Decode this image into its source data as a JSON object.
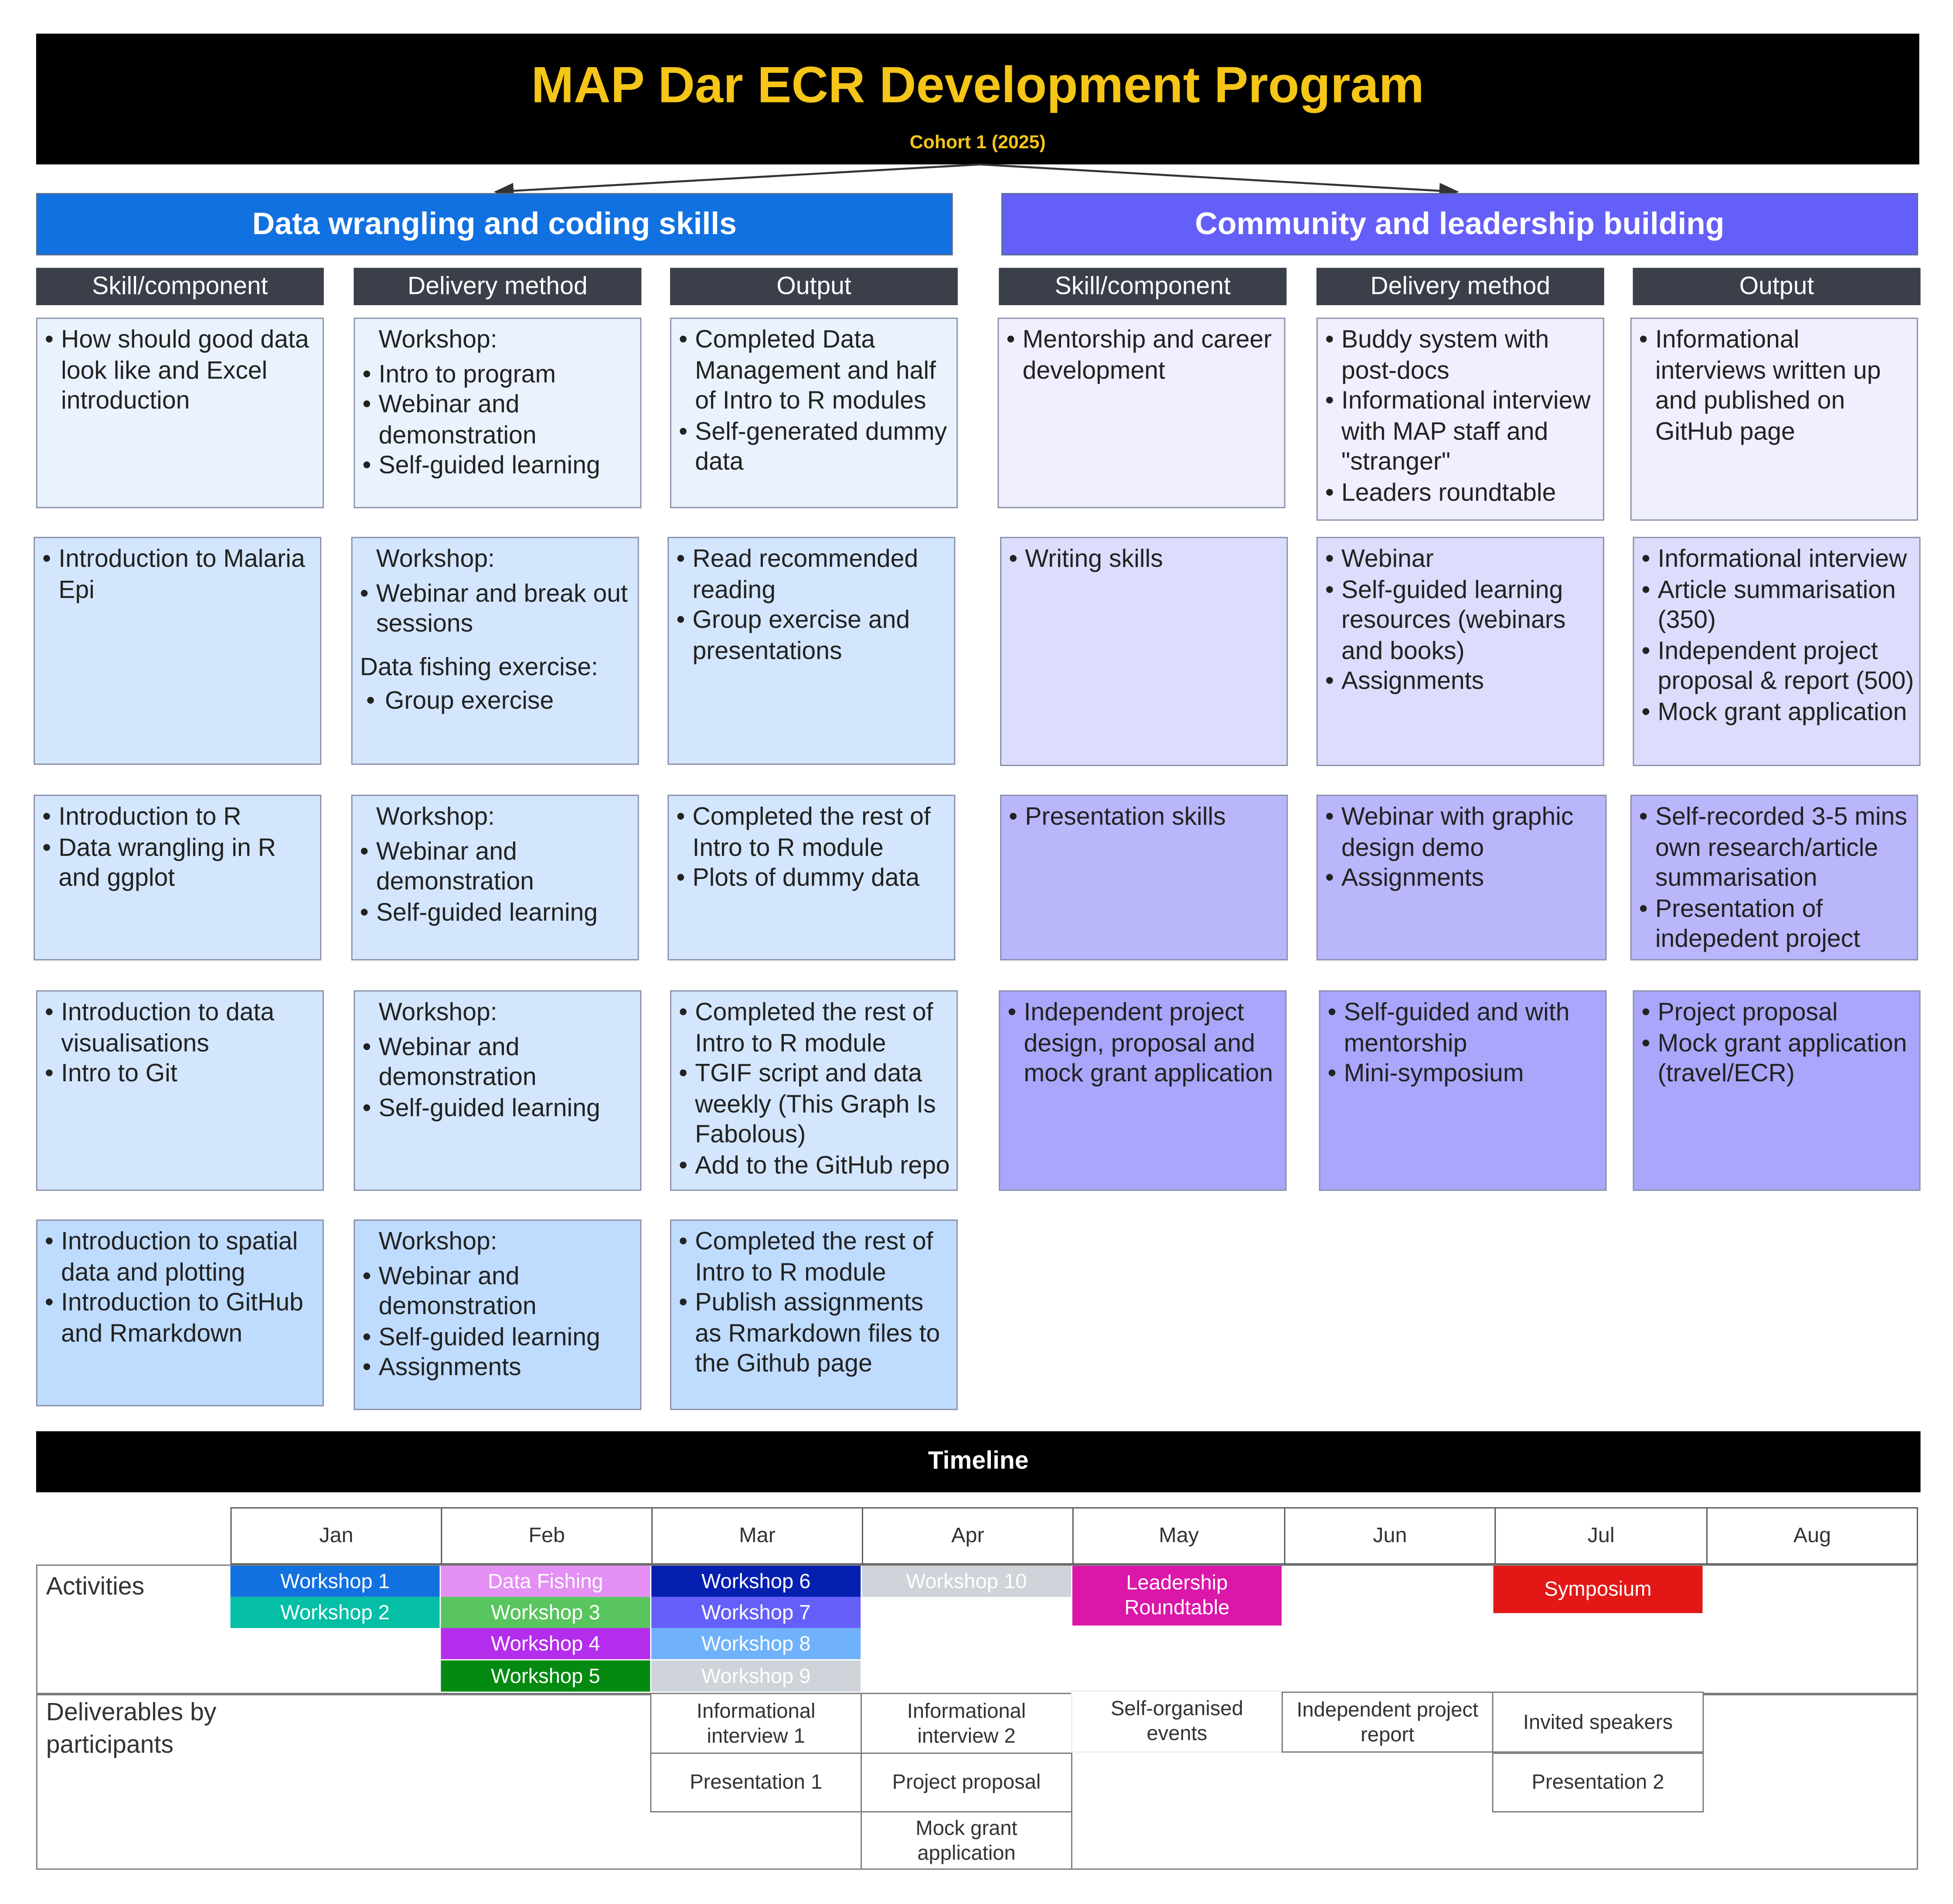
{
  "header": {
    "title": "MAP Dar ECR Development Program",
    "subtitle": "Cohort 1 (2025)"
  },
  "sections": [
    {
      "title": "Data wrangling and coding skills",
      "color": "#1271e0"
    },
    {
      "title": "Community and leadership building",
      "color": "#655ff9"
    }
  ],
  "column_headers": [
    "Skill/component",
    "Delivery method",
    "Output",
    "Skill/component",
    "Delivery method",
    "Output"
  ],
  "data_rows": [
    {
      "skill": [
        "How should good data look like and Excel introduction"
      ],
      "delivery_lead": "Workshop:",
      "delivery": [
        "Intro to program",
        "Webinar and demonstration",
        "Self-guided learning"
      ],
      "output": [
        "Completed Data Management and half of Intro to R modules",
        "Self-generated dummy data"
      ]
    },
    {
      "skill": [
        "Introduction to Malaria Epi"
      ],
      "delivery_lead": "Workshop:",
      "delivery": [
        "Webinar and break out sessions"
      ],
      "delivery_lead2": "Data fishing exercise:",
      "delivery2": [
        "Group exercise"
      ],
      "output": [
        "Read recommended reading",
        "Group exercise and presentations"
      ]
    },
    {
      "skill": [
        "Introduction to R",
        "Data wrangling in R and ggplot"
      ],
      "delivery_lead": "Workshop:",
      "delivery": [
        "Webinar and demonstration",
        "Self-guided learning"
      ],
      "output": [
        "Completed the rest of Intro to R module",
        "Plots of dummy data"
      ]
    },
    {
      "skill": [
        "Introduction to data visualisations",
        "Intro to Git"
      ],
      "delivery_lead": "Workshop:",
      "delivery": [
        "Webinar and demonstration",
        "Self-guided learning"
      ],
      "output": [
        "Completed the rest of Intro to R module",
        "TGIF script and data weekly (This Graph Is Fabolous)",
        "Add to the GitHub repo"
      ]
    },
    {
      "skill": [
        "Introduction to spatial data and plotting",
        "Introduction to GitHub and Rmarkdown"
      ],
      "delivery_lead": "Workshop:",
      "delivery": [
        "Webinar and demonstration",
        "Self-guided learning",
        "Assignments"
      ],
      "output": [
        "Completed the rest of Intro to R module",
        "Publish assignments as Rmarkdown files to the Github page"
      ]
    }
  ],
  "community_rows": [
    {
      "skill": [
        "Mentorship and career development"
      ],
      "delivery": [
        "Buddy system with post-docs",
        "Informational interview with MAP staff and \"stranger\"",
        "Leaders roundtable"
      ],
      "output": [
        "Informational interviews written up and published on GitHub page"
      ]
    },
    {
      "skill": [
        "Writing skills"
      ],
      "delivery": [
        "Webinar",
        "Self-guided learning resources (webinars and books)",
        "Assignments"
      ],
      "output": [
        "Informational interview",
        "Article summarisation (350)",
        "Independent project proposal & report (500)",
        "Mock grant application"
      ]
    },
    {
      "skill": [
        "Presentation skills"
      ],
      "delivery": [
        "Webinar with graphic design demo",
        "Assignments"
      ],
      "output": [
        "Self-recorded 3-5 mins own research/article summarisation",
        "Presentation of indepedent project"
      ]
    },
    {
      "skill": [
        "Independent project design, proposal and mock grant application"
      ],
      "delivery": [
        "Self-guided and with mentorship",
        "Mini-symposium"
      ],
      "output": [
        "Project proposal",
        "Mock grant application (travel/ECR)"
      ]
    }
  ],
  "timeline": {
    "title": "Timeline",
    "months": [
      "Jan",
      "Feb",
      "Mar",
      "Apr",
      "May",
      "Jun",
      "Jul",
      "Aug"
    ],
    "activities_label": "Activities",
    "deliverables_label": "Deliverables by participants",
    "activities": [
      {
        "label": "Workshop 1",
        "color": "#1271e0"
      },
      {
        "label": "Workshop 2",
        "color": "#04bfa5"
      },
      {
        "label": "Data Fishing",
        "color": "#e38ff3"
      },
      {
        "label": "Workshop 3",
        "color": "#58c55f"
      },
      {
        "label": "Workshop 4",
        "color": "#b42ded"
      },
      {
        "label": "Workshop 5",
        "color": "#048a10"
      },
      {
        "label": "Workshop 6",
        "color": "#051fb0"
      },
      {
        "label": "Workshop 7",
        "color": "#655ff9"
      },
      {
        "label": "Workshop 8",
        "color": "#6fb2fb"
      },
      {
        "label": "Workshop 9",
        "color": "#cfd4da"
      },
      {
        "label": "Workshop 10",
        "color": "#cfd4da"
      },
      {
        "label": "Leadership Roundtable",
        "color": "#da17a8"
      },
      {
        "label": "Symposium",
        "color": "#e41717"
      }
    ],
    "deliverables": [
      "Informational interview 1",
      "Presentation 1",
      "Informational interview 2",
      "Project proposal",
      "Mock grant application",
      "Self-organised events",
      "Independent project report",
      "Invited speakers",
      "Presentation 2"
    ]
  }
}
